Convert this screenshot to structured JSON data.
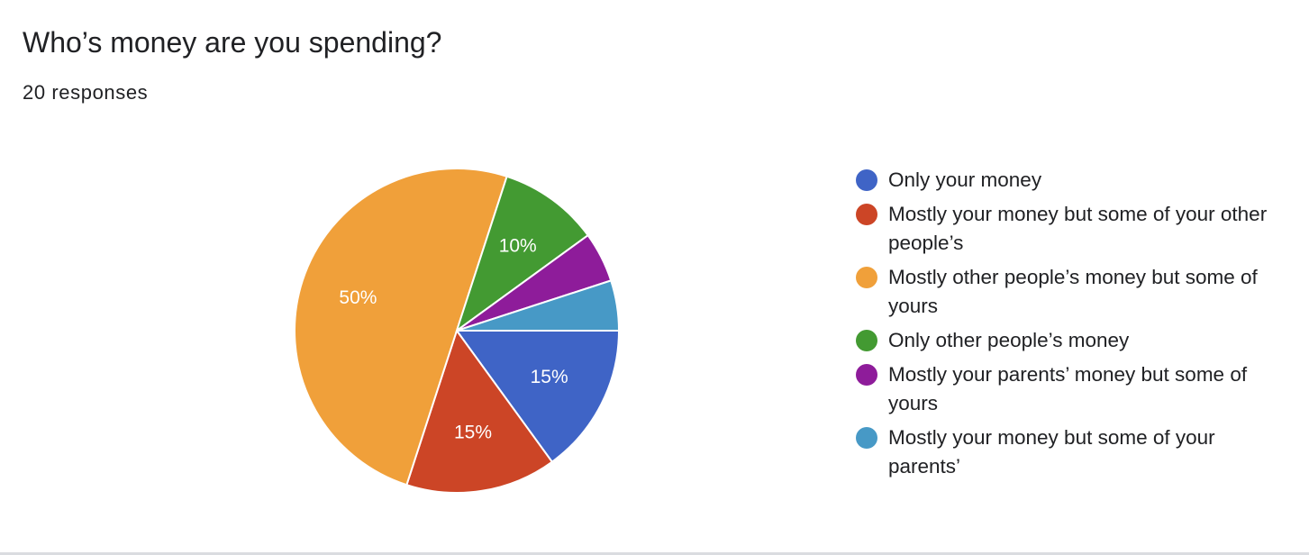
{
  "header": {
    "title": "Who’s money are you spending?",
    "subtitle": "20 responses"
  },
  "chart_data": {
    "type": "pie",
    "title": "Who’s money are you spending?",
    "subtitle": "20 responses",
    "legend_position": "right",
    "slices": [
      {
        "label": "Only your money",
        "value": 15,
        "display": "15%",
        "color": "#3f64c6"
      },
      {
        "label": "Mostly your money but some of your other people’s",
        "value": 15,
        "display": "15%",
        "color": "#cc4526"
      },
      {
        "label": "Mostly other people’s money but some of yours",
        "value": 50,
        "display": "50%",
        "color": "#f0a03a"
      },
      {
        "label": "Only other people’s money",
        "value": 10,
        "display": "10%",
        "color": "#439a32"
      },
      {
        "label": "Mostly your parents’ money but some of yours",
        "value": 5,
        "display": "",
        "color": "#8e1c9a"
      },
      {
        "label": "Mostly your money but some of your parents’",
        "value": 5,
        "display": "",
        "color": "#4799c6"
      }
    ]
  }
}
